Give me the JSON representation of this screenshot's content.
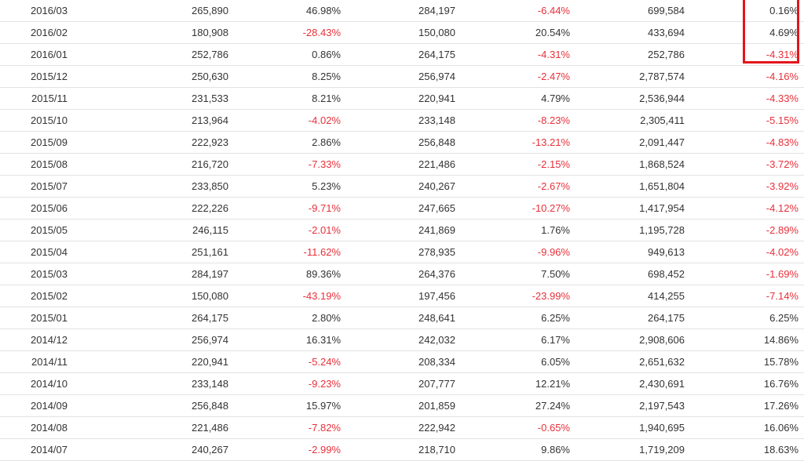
{
  "table": {
    "rows": [
      [
        "2016/03",
        "265,890",
        "46.98%",
        "284,197",
        "-6.44%",
        "699,584",
        "0.16%"
      ],
      [
        "2016/02",
        "180,908",
        "-28.43%",
        "150,080",
        "20.54%",
        "433,694",
        "4.69%"
      ],
      [
        "2016/01",
        "252,786",
        "0.86%",
        "264,175",
        "-4.31%",
        "252,786",
        "-4.31%"
      ],
      [
        "2015/12",
        "250,630",
        "8.25%",
        "256,974",
        "-2.47%",
        "2,787,574",
        "-4.16%"
      ],
      [
        "2015/11",
        "231,533",
        "8.21%",
        "220,941",
        "4.79%",
        "2,536,944",
        "-4.33%"
      ],
      [
        "2015/10",
        "213,964",
        "-4.02%",
        "233,148",
        "-8.23%",
        "2,305,411",
        "-5.15%"
      ],
      [
        "2015/09",
        "222,923",
        "2.86%",
        "256,848",
        "-13.21%",
        "2,091,447",
        "-4.83%"
      ],
      [
        "2015/08",
        "216,720",
        "-7.33%",
        "221,486",
        "-2.15%",
        "1,868,524",
        "-3.72%"
      ],
      [
        "2015/07",
        "233,850",
        "5.23%",
        "240,267",
        "-2.67%",
        "1,651,804",
        "-3.92%"
      ],
      [
        "2015/06",
        "222,226",
        "-9.71%",
        "247,665",
        "-10.27%",
        "1,417,954",
        "-4.12%"
      ],
      [
        "2015/05",
        "246,115",
        "-2.01%",
        "241,869",
        "1.76%",
        "1,195,728",
        "-2.89%"
      ],
      [
        "2015/04",
        "251,161",
        "-11.62%",
        "278,935",
        "-9.96%",
        "949,613",
        "-4.02%"
      ],
      [
        "2015/03",
        "284,197",
        "89.36%",
        "264,376",
        "7.50%",
        "698,452",
        "-1.69%"
      ],
      [
        "2015/02",
        "150,080",
        "-43.19%",
        "197,456",
        "-23.99%",
        "414,255",
        "-7.14%"
      ],
      [
        "2015/01",
        "264,175",
        "2.80%",
        "248,641",
        "6.25%",
        "264,175",
        "6.25%"
      ],
      [
        "2014/12",
        "256,974",
        "16.31%",
        "242,032",
        "6.17%",
        "2,908,606",
        "14.86%"
      ],
      [
        "2014/11",
        "220,941",
        "-5.24%",
        "208,334",
        "6.05%",
        "2,651,632",
        "15.78%"
      ],
      [
        "2014/10",
        "233,148",
        "-9.23%",
        "207,777",
        "12.21%",
        "2,430,691",
        "16.76%"
      ],
      [
        "2014/09",
        "256,848",
        "15.97%",
        "201,859",
        "27.24%",
        "2,197,543",
        "17.26%"
      ],
      [
        "2014/08",
        "221,486",
        "-7.82%",
        "222,942",
        "-0.65%",
        "1,940,695",
        "16.06%"
      ],
      [
        "2014/07",
        "240,267",
        "-2.99%",
        "218,710",
        "9.86%",
        "1,719,209",
        "18.63%"
      ]
    ]
  },
  "colors": {
    "negative": "#e8303a",
    "text": "#333333",
    "highlight_border": "#e3141c",
    "row_divider": "#e3e3e3"
  },
  "annotations": {
    "highlight_box": {
      "column": 6,
      "rows": [
        0,
        1,
        2
      ]
    }
  }
}
